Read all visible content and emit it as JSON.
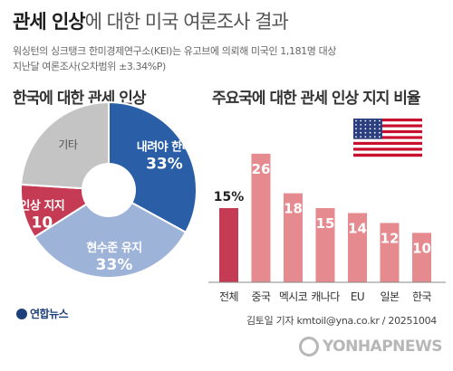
{
  "header": {
    "title_strong": "관세 인상",
    "title_rest": "에 대한 미국 여론조사 결과",
    "subtitle_line1": "워싱턴의 싱크탱크 한미경제연구소(KEI)는 유고브에 의뢰해 미국인 1,181명 대상",
    "subtitle_line2": "지난달 여론조사(오차범위 ±3.34%P)"
  },
  "pie_section": {
    "title": "한국에 대한 관세 인상"
  },
  "bar_section": {
    "title": "주요국에 대한 관세 인상 지지 비율"
  },
  "chart_data": [
    {
      "type": "pie",
      "title": "한국에 대한 관세 인상",
      "slices": [
        {
          "label": "내려야 한다",
          "value": 33,
          "display": "33%",
          "color": "#2a5fa8"
        },
        {
          "label": "현수준 유지",
          "value": 33,
          "display": "33%",
          "color": "#9db3d8"
        },
        {
          "label": "인상 지지",
          "value": 10,
          "display": "10",
          "color": "#c53b54"
        },
        {
          "label": "기타",
          "value": 24,
          "display": "",
          "color": "#c4c4c4"
        }
      ]
    },
    {
      "type": "bar",
      "title": "주요국에 대한 관세 인상 지지 비율",
      "categories": [
        "전체",
        "중국",
        "멕시코",
        "캐나다",
        "EU",
        "일본",
        "한국"
      ],
      "values": [
        15,
        26,
        18,
        15,
        14,
        12,
        10
      ],
      "value_labels": [
        "15%",
        "26",
        "18",
        "15",
        "14",
        "12",
        "10"
      ],
      "ylim": [
        0,
        30
      ],
      "grid": false,
      "colors": {
        "highlight": "#c53b54",
        "default": "#e58a8e"
      }
    }
  ],
  "footer": {
    "logo_text": "연합뉴스",
    "credit": "김토일 기자 kmtoil@yna.co.kr / 20251004",
    "watermark": "YONHAPNEWS"
  }
}
